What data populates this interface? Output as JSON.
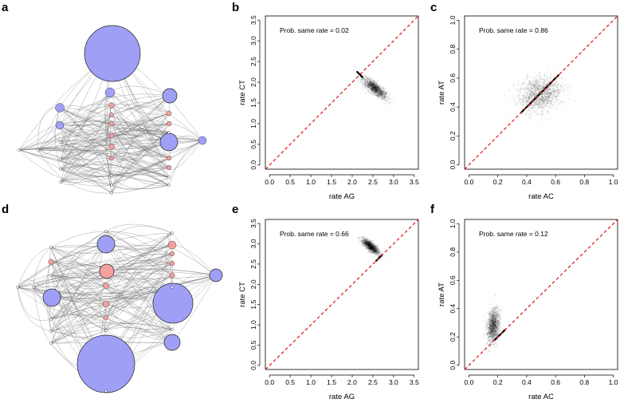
{
  "panel_labels": [
    "a",
    "b",
    "c",
    "d",
    "e",
    "f"
  ],
  "chart_data": [
    {
      "id": "b",
      "type": "scatter",
      "annotation": "Prob. same rate = 0.02",
      "xlabel": "rate AG",
      "ylabel": "rate CT",
      "xlim": [
        -0.1,
        3.6
      ],
      "ylim": [
        -0.1,
        3.6
      ],
      "xticks": [
        0,
        0.5,
        1,
        1.5,
        2,
        2.5,
        3,
        3.5
      ],
      "yticks": [
        0,
        0.5,
        1,
        1.5,
        2,
        2.5,
        3,
        3.5
      ],
      "xtick_labels": [
        "0.0",
        "0.5",
        "1.0",
        "1.5",
        "2.0",
        "2.5",
        "3.0",
        "3.5"
      ],
      "ytick_labels": [
        "0.0",
        "0.5",
        "1.0",
        "1.5",
        "2.0",
        "2.5",
        "3.0",
        "3.5"
      ],
      "cloud": {
        "center": [
          2.55,
          1.85
        ],
        "sd_major": 0.18,
        "sd_minor": 0.06,
        "angle_deg": -40
      },
      "diag_segment": [
        2.12,
        2.25,
        2.25,
        2.12
      ],
      "reference_line": {
        "color": "#e0201b",
        "style": "dashed",
        "slope": 1
      }
    },
    {
      "id": "c",
      "type": "scatter",
      "annotation": "Prob. same rate = 0.86",
      "xlabel": "rate AC",
      "ylabel": "rate AT",
      "xlim": [
        -0.03,
        1.03
      ],
      "ylim": [
        -0.03,
        1.03
      ],
      "xticks": [
        0,
        0.2,
        0.4,
        0.6,
        0.8,
        1.0
      ],
      "yticks": [
        0,
        0.2,
        0.4,
        0.6,
        0.8,
        1.0
      ],
      "xtick_labels": [
        "0.0",
        "0.2",
        "0.4",
        "0.6",
        "0.8",
        "1.0"
      ],
      "ytick_labels": [
        "0.0",
        "0.2",
        "0.4",
        "0.6",
        "0.8",
        "1.0"
      ],
      "cloud": {
        "center": [
          0.49,
          0.49
        ],
        "sd_major": 0.075,
        "sd_minor": 0.06,
        "angle_deg": 20
      },
      "diag_segment": [
        0.36,
        0.36,
        0.62,
        0.62
      ],
      "reference_line": {
        "color": "#e0201b",
        "style": "dashed",
        "slope": 1
      }
    },
    {
      "id": "e",
      "type": "scatter",
      "annotation": "Prob. same rate = 0.66",
      "xlabel": "rate AG",
      "ylabel": "rate CT",
      "xlim": [
        -0.1,
        3.6
      ],
      "ylim": [
        -0.1,
        3.6
      ],
      "xticks": [
        0,
        0.5,
        1,
        1.5,
        2,
        2.5,
        3,
        3.5
      ],
      "yticks": [
        0,
        0.5,
        1,
        1.5,
        2,
        2.5,
        3,
        3.5
      ],
      "xtick_labels": [
        "0.0",
        "0.5",
        "1.0",
        "1.5",
        "2.0",
        "2.5",
        "3.0",
        "3.5"
      ],
      "ytick_labels": [
        "0.0",
        "0.5",
        "1.0",
        "1.5",
        "2.0",
        "2.5",
        "3.0",
        "3.5"
      ],
      "cloud": {
        "center": [
          2.45,
          2.93
        ],
        "sd_major": 0.13,
        "sd_minor": 0.045,
        "angle_deg": -42
      },
      "diag_segment": [
        2.58,
        2.58,
        2.72,
        2.72
      ],
      "reference_line": {
        "color": "#e0201b",
        "style": "dashed",
        "slope": 1
      }
    },
    {
      "id": "f",
      "type": "scatter",
      "annotation": "Prob. same rate = 0.12",
      "xlabel": "rate AC",
      "ylabel": "rate AT",
      "xlim": [
        -0.03,
        1.03
      ],
      "ylim": [
        -0.03,
        1.03
      ],
      "xticks": [
        0,
        0.2,
        0.4,
        0.6,
        0.8,
        1.0
      ],
      "yticks": [
        0,
        0.2,
        0.4,
        0.6,
        0.8,
        1.0
      ],
      "xtick_labels": [
        "0.0",
        "0.2",
        "0.4",
        "0.6",
        "0.8",
        "1.0"
      ],
      "ytick_labels": [
        "0.0",
        "0.2",
        "0.4",
        "0.6",
        "0.8",
        "1.0"
      ],
      "cloud": {
        "center": [
          0.17,
          0.28
        ],
        "sd_major": 0.06,
        "sd_minor": 0.02,
        "angle_deg": 85
      },
      "diag_segment": [
        0.18,
        0.18,
        0.25,
        0.25
      ],
      "reference_line": {
        "color": "#e0201b",
        "style": "dashed",
        "slope": 1
      }
    }
  ],
  "networks": {
    "a": {
      "blue_color": "#9f9ff5",
      "red_color": "#f4a0a0",
      "nodes": [
        {
          "kind": "blue",
          "size": 1.0
        },
        {
          "kind": "blue",
          "size": 0.22
        },
        {
          "kind": "blue",
          "size": 0.3
        },
        {
          "kind": "blue",
          "size": 0.18
        },
        {
          "kind": "blue",
          "size": 0.14
        },
        {
          "kind": "blue",
          "size": 0.12
        },
        {
          "kind": "blue",
          "size": 0.1
        },
        {
          "kind": "red",
          "size": 0.08
        },
        {
          "kind": "red",
          "size": 0.08
        },
        {
          "kind": "red",
          "size": 0.07
        },
        {
          "kind": "red",
          "size": 0.07
        },
        {
          "kind": "red",
          "size": 0.07
        },
        {
          "kind": "red",
          "size": 0.06
        },
        {
          "kind": "red",
          "size": 0.06
        },
        {
          "kind": "red",
          "size": 0.06
        },
        {
          "kind": "red",
          "size": 0.06
        },
        {
          "kind": "red",
          "size": 0.05
        }
      ]
    },
    "d": {
      "blue_color": "#9f9ff5",
      "red_color": "#f4a0a0",
      "nodes": [
        {
          "kind": "blue",
          "size": 1.0
        },
        {
          "kind": "blue",
          "size": 0.75
        },
        {
          "kind": "blue",
          "size": 0.3
        },
        {
          "kind": "blue",
          "size": 0.2
        },
        {
          "kind": "blue",
          "size": 0.19
        },
        {
          "kind": "blue",
          "size": 0.17
        },
        {
          "kind": "red",
          "size": 0.17
        },
        {
          "kind": "red",
          "size": 0.1
        },
        {
          "kind": "red",
          "size": 0.09
        },
        {
          "kind": "red",
          "size": 0.08
        },
        {
          "kind": "red",
          "size": 0.07
        },
        {
          "kind": "red",
          "size": 0.07
        },
        {
          "kind": "red",
          "size": 0.07
        },
        {
          "kind": "red",
          "size": 0.06
        },
        {
          "kind": "red",
          "size": 0.06
        }
      ]
    }
  }
}
